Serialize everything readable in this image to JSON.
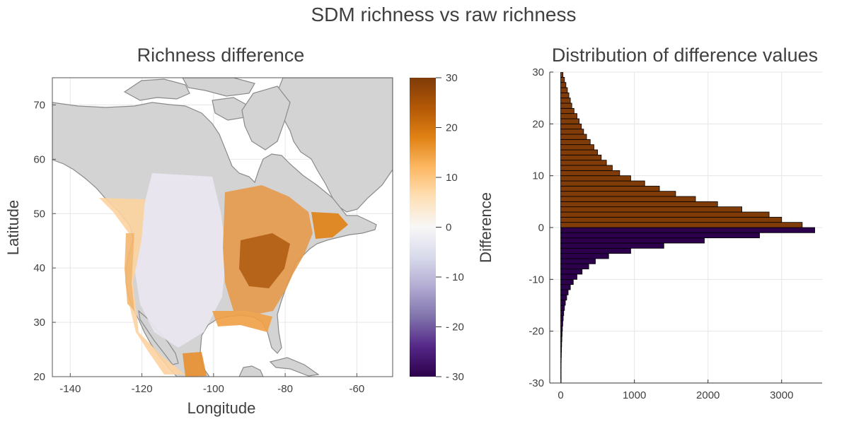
{
  "figure": {
    "title": "SDM richness vs raw richness"
  },
  "chart_data": [
    {
      "type": "heatmap",
      "title": "Richness difference",
      "xlabel": "Longitude",
      "ylabel": "Latitude",
      "xlim": [
        -145,
        -50
      ],
      "ylim": [
        20,
        75
      ],
      "xticks": [
        "-140",
        "-120",
        "-100",
        "-80",
        "-60"
      ],
      "xtick_values": [
        -140,
        -120,
        -100,
        -80,
        -60
      ],
      "yticks": [
        "20",
        "30",
        "40",
        "50",
        "60",
        "70"
      ],
      "ytick_values": [
        20,
        30,
        40,
        50,
        60,
        70
      ],
      "grid": true,
      "colorbar": {
        "label": "Difference",
        "range": [
          -30,
          30
        ],
        "ticks": [
          "30",
          "20",
          "10",
          "0",
          "- 10",
          "- 20",
          "- 30"
        ],
        "tick_values": [
          30,
          20,
          10,
          0,
          -10,
          -20,
          -30
        ],
        "colormap": [
          "#2d004b",
          "#542788",
          "#8073ac",
          "#b2abd2",
          "#d8daeb",
          "#f7f7f7",
          "#fee0b6",
          "#fdb863",
          "#e08214",
          "#b35806",
          "#7f3b08"
        ]
      },
      "land_color": "#d3d3d3",
      "coast_color": "#8a8a8a"
    },
    {
      "type": "bar",
      "orientation": "horizontal",
      "title": "Distribution of difference values",
      "xlim": [
        -150,
        3550
      ],
      "ylim": [
        -30,
        30
      ],
      "xticks": [
        "0",
        "1000",
        "2000",
        "3000"
      ],
      "xtick_values": [
        0,
        1000,
        2000,
        3000
      ],
      "yticks": [
        "30",
        "20",
        "10",
        "0",
        "-10",
        "-20",
        "-30"
      ],
      "ytick_values": [
        30,
        20,
        10,
        0,
        -10,
        -20,
        -30
      ],
      "grid": true,
      "bin_width": 1,
      "positive_color": "#7f3b08",
      "negative_color": "#2d004b",
      "bins_from": -30,
      "counts": [
        2,
        3,
        4,
        5,
        6,
        8,
        10,
        12,
        15,
        18,
        22,
        27,
        33,
        40,
        50,
        62,
        80,
        100,
        130,
        170,
        220,
        290,
        380,
        470,
        650,
        950,
        1400,
        1950,
        2700,
        3450,
        3280,
        3000,
        2830,
        2460,
        2130,
        1830,
        1560,
        1340,
        1140,
        950,
        800,
        700,
        620,
        550,
        500,
        450,
        400,
        350,
        310,
        280,
        250,
        220,
        180,
        150,
        130,
        110,
        90,
        70,
        50,
        30
      ]
    }
  ]
}
